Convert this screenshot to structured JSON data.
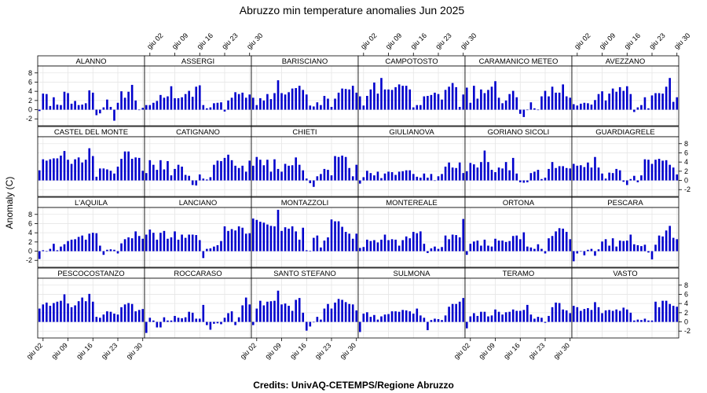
{
  "chart_data": {
    "type": "bar",
    "title": "Abruzzo min temperature anomalies Jun 2025",
    "ylabel": "Anomaly (C)",
    "credits": "Credits: UnivAQ-CETEMPS/Regione Abruzzo",
    "ylim": [
      -3.5,
      9.5
    ],
    "yticks": [
      -2,
      0,
      2,
      4,
      6,
      8
    ],
    "x_range": [
      0.5,
      30.5
    ],
    "xticks": [
      {
        "day": 2,
        "label": "giu 02"
      },
      {
        "day": 9,
        "label": "giu 09"
      },
      {
        "day": 16,
        "label": "giu 16"
      },
      {
        "day": 23,
        "label": "giu 23"
      },
      {
        "day": 30,
        "label": "giu 30"
      }
    ],
    "grid": true,
    "bar_color": "#0000cc",
    "days": [
      1,
      2,
      3,
      4,
      5,
      6,
      7,
      8,
      9,
      10,
      11,
      12,
      13,
      14,
      15,
      16,
      17,
      18,
      19,
      20,
      21,
      22,
      23,
      24,
      25,
      26,
      27,
      28,
      29,
      30
    ],
    "panels": [
      {
        "name": "ALANNO",
        "values": [
          -0.3,
          3.5,
          3.4,
          0.8,
          2.7,
          1.1,
          1.0,
          3.9,
          3.6,
          1.3,
          1.9,
          1.0,
          1.1,
          1.4,
          4.2,
          3.7,
          -1.2,
          -0.8,
          0.5,
          2.2,
          0.6,
          -2.4,
          1.5,
          4.0,
          2.6,
          3.9,
          5.4,
          2.0,
          0.0,
          0.4
        ]
      },
      {
        "name": "ASSERGI",
        "values": [
          1.0,
          1.0,
          1.5,
          1.9,
          3.2,
          2.6,
          2.9,
          5.1,
          2.5,
          2.5,
          2.7,
          3.4,
          4.1,
          2.8,
          5.0,
          5.3,
          1.0,
          0.3,
          0.5,
          1.4,
          1.5,
          1.6,
          -0.4,
          2.0,
          2.6,
          3.8,
          3.4,
          3.7,
          2.6,
          3.3
        ]
      },
      {
        "name": "BARISCIANO",
        "values": [
          2.6,
          1.0,
          2.5,
          2.0,
          3.4,
          2.3,
          3.6,
          6.4,
          3.6,
          3.3,
          3.8,
          4.6,
          4.7,
          5.2,
          4.3,
          3.3,
          0.9,
          0.7,
          1.6,
          1.0,
          3.0,
          2.4,
          0.6,
          2.4,
          3.7,
          4.6,
          4.5,
          4.4,
          5.2,
          3.7
        ]
      },
      {
        "name": "CAMPOTOSTO",
        "values": [
          2.9,
          0.9,
          3.0,
          4.4,
          5.9,
          3.5,
          6.9,
          4.4,
          4.4,
          4.3,
          4.9,
          5.5,
          5.2,
          5.2,
          4.4,
          0.5,
          1.0,
          1.0,
          2.9,
          3.0,
          3.2,
          3.7,
          3.4,
          2.2,
          4.3,
          5.0,
          5.8,
          4.9,
          0.6,
          3.3
        ]
      },
      {
        "name": "CARAMANICO METEO",
        "values": [
          4.8,
          1.5,
          5.2,
          2.4,
          4.4,
          3.6,
          4.3,
          5.0,
          6.2,
          2.6,
          1.4,
          2.0,
          3.4,
          4.1,
          2.7,
          -0.9,
          -1.6,
          0.0,
          1.6,
          0.3,
          -0.1,
          2.9,
          4.1,
          2.9,
          5.0,
          3.7,
          3.7,
          5.5,
          2.9,
          2.6
        ]
      },
      {
        "name": "AVEZZANO",
        "values": [
          1.2,
          0.9,
          1.3,
          1.5,
          1.4,
          1.1,
          2.1,
          3.4,
          4.0,
          2.0,
          3.5,
          4.6,
          3.9,
          4.9,
          4.1,
          5.1,
          3.4,
          -0.5,
          0.5,
          1.0,
          2.7,
          0.3,
          3.1,
          3.6,
          3.6,
          3.5,
          5.0,
          6.9,
          1.7,
          2.7
        ]
      },
      {
        "name": "CASTEL DEL MONTE",
        "values": [
          2.2,
          4.6,
          4.3,
          4.6,
          4.8,
          4.8,
          5.4,
          6.4,
          4.5,
          3.6,
          4.6,
          5.0,
          3.9,
          4.5,
          7.0,
          5.3,
          0.8,
          2.6,
          2.6,
          2.4,
          2.1,
          1.5,
          3.0,
          4.7,
          6.3,
          6.3,
          4.7,
          5.0,
          4.9,
          2.1
        ]
      },
      {
        "name": "CATIGNANO",
        "values": [
          1.6,
          4.4,
          3.4,
          2.3,
          4.4,
          2.4,
          4.2,
          1.1,
          2.5,
          3.4,
          3.0,
          1.2,
          1.0,
          -1.0,
          -1.1,
          1.3,
          0.4,
          0.2,
          0.7,
          3.4,
          4.3,
          4.2,
          4.9,
          5.6,
          4.4,
          3.2,
          2.7,
          3.2,
          1.9,
          4.3
        ]
      },
      {
        "name": "CHIETI",
        "values": [
          3.2,
          5.1,
          4.5,
          3.3,
          4.5,
          1.9,
          4.6,
          2.5,
          1.9,
          3.6,
          3.2,
          3.3,
          5.0,
          3.4,
          2.2,
          0.4,
          -0.6,
          -1.4,
          0.9,
          1.4,
          2.5,
          2.3,
          1.1,
          5.3,
          5.1,
          5.4,
          5.1,
          2.7,
          0.9,
          3.4
        ]
      },
      {
        "name": "GIULIANOVA",
        "values": [
          -0.7,
          0.7,
          2.1,
          1.6,
          1.1,
          1.9,
          0.5,
          1.5,
          1.9,
          1.8,
          1.2,
          1.9,
          2.0,
          2.2,
          2.2,
          1.4,
          0.8,
          0.6,
          1.5,
          0.6,
          1.4,
          -0.1,
          0.9,
          1.4,
          3.0,
          3.9,
          2.8,
          2.7,
          3.9,
          1.6
        ]
      },
      {
        "name": "GORIANO SICOLI",
        "values": [
          2.0,
          3.8,
          3.5,
          2.8,
          4.0,
          6.5,
          4.0,
          2.3,
          1.8,
          2.8,
          2.6,
          4.0,
          2.2,
          4.9,
          1.5,
          -0.4,
          -0.5,
          -0.4,
          1.6,
          1.9,
          2.3,
          0.3,
          0.6,
          2.5,
          4.0,
          2.7,
          3.1,
          3.1,
          2.7,
          2.6
        ]
      },
      {
        "name": "GUARDIAGRELE",
        "values": [
          3.6,
          3.2,
          3.3,
          2.9,
          3.9,
          2.8,
          5.1,
          2.8,
          1.5,
          0.4,
          1.7,
          1.6,
          2.5,
          2.2,
          -0.3,
          -1.0,
          0.3,
          1.0,
          -0.4,
          1.1,
          4.6,
          4.5,
          3.6,
          4.5,
          4.7,
          4.3,
          4.4,
          3.4,
          2.8,
          1.3
        ]
      },
      {
        "name": "L'AQUILA",
        "values": [
          -1.7,
          0.2,
          0.0,
          0.5,
          1.6,
          0.2,
          1.0,
          1.5,
          2.2,
          2.5,
          2.6,
          3.1,
          3.4,
          2.5,
          3.8,
          4.0,
          3.9,
          1.2,
          -0.8,
          0.3,
          0.4,
          0.3,
          -0.5,
          1.7,
          2.6,
          3.0,
          2.8,
          4.3,
          3.3,
          2.7
        ]
      },
      {
        "name": "LANCIANO",
        "values": [
          3.6,
          4.7,
          4.0,
          2.5,
          4.0,
          4.4,
          2.7,
          3.0,
          4.3,
          2.5,
          3.6,
          2.9,
          3.6,
          3.6,
          3.5,
          2.4,
          -1.5,
          0.5,
          0.6,
          1.0,
          1.3,
          2.2,
          5.4,
          4.4,
          4.8,
          4.5,
          5.4,
          5.1,
          3.8,
          3.9
        ]
      },
      {
        "name": "MONTAZZOLI",
        "values": [
          7.1,
          6.8,
          6.4,
          6.2,
          5.8,
          5.5,
          5.4,
          9.0,
          4.4,
          5.2,
          4.9,
          5.4,
          4.3,
          2.5,
          5.1,
          0.2,
          0.1,
          2.9,
          3.4,
          0.8,
          2.3,
          3.0,
          6.9,
          6.5,
          6.5,
          5.3,
          4.2,
          3.8,
          2.7,
          3.8
        ]
      },
      {
        "name": "MONTEREALE",
        "values": [
          0.7,
          0.9,
          2.5,
          2.2,
          2.4,
          1.9,
          2.5,
          3.6,
          2.4,
          2.6,
          2.5,
          1.2,
          2.4,
          3.2,
          2.8,
          4.2,
          3.9,
          4.3,
          1.6,
          -0.4,
          0.6,
          1.0,
          0.5,
          0.9,
          3.4,
          2.6,
          3.6,
          3.5,
          3.0,
          7.0
        ]
      },
      {
        "name": "ORTONA",
        "values": [
          -0.8,
          1.6,
          2.1,
          2.3,
          1.2,
          2.5,
          1.2,
          1.0,
          2.7,
          2.3,
          2.3,
          2.0,
          2.2,
          3.3,
          3.4,
          2.6,
          4.1,
          1.0,
          0.8,
          0.5,
          1.5,
          0.5,
          -0.5,
          2.8,
          3.3,
          4.3,
          5.0,
          4.9,
          4.2,
          2.6
        ]
      },
      {
        "name": "PESCARA",
        "values": [
          -2.2,
          -0.5,
          -0.1,
          -0.9,
          0.3,
          0.5,
          -1.0,
          0.4,
          2.1,
          2.6,
          1.2,
          2.8,
          1.0,
          2.3,
          2.2,
          2.3,
          3.6,
          1.5,
          1.3,
          1.1,
          1.4,
          -0.3,
          -1.8,
          1.4,
          3.4,
          3.2,
          4.5,
          5.5,
          2.9,
          2.6
        ]
      },
      {
        "name": "PESCOCOSTANZO",
        "values": [
          2.9,
          3.8,
          4.2,
          3.5,
          4.1,
          4.4,
          4.6,
          6.0,
          4.0,
          3.2,
          3.6,
          4.5,
          5.3,
          4.5,
          6.1,
          4.4,
          1.1,
          0.9,
          1.6,
          2.3,
          2.2,
          1.8,
          1.6,
          3.2,
          3.8,
          4.1,
          3.9,
          2.3,
          2.6,
          2.8
        ]
      },
      {
        "name": "ROCCARASO",
        "values": [
          -2.4,
          0.9,
          0.3,
          -1.2,
          -1.2,
          1.0,
          0.3,
          0.3,
          1.3,
          0.9,
          0.8,
          1.0,
          2.2,
          2.0,
          0.7,
          0.7,
          3.7,
          -0.7,
          -1.7,
          -0.4,
          -0.3,
          -0.5,
          0.9,
          1.9,
          2.3,
          -0.7,
          1.0,
          3.6,
          5.3,
          3.8
        ]
      },
      {
        "name": "SANTO STEFANO",
        "values": [
          -0.7,
          2.9,
          4.6,
          3.6,
          4.4,
          4.5,
          4.6,
          6.8,
          3.8,
          4.0,
          3.5,
          2.4,
          4.8,
          5.2,
          2.0,
          -1.9,
          -1.0,
          0.0,
          1.1,
          0.5,
          2.9,
          3.9,
          2.9,
          4.2,
          5.0,
          4.8,
          4.3,
          3.9,
          3.8,
          2.5
        ]
      },
      {
        "name": "SULMONA",
        "values": [
          -2.2,
          1.8,
          2.1,
          1.1,
          1.5,
          0.5,
          1.2,
          1.6,
          1.7,
          2.3,
          2.3,
          2.2,
          2.6,
          2.5,
          2.3,
          1.8,
          2.9,
          1.4,
          0.9,
          -1.8,
          0.4,
          0.7,
          0.6,
          0.4,
          1.4,
          3.3,
          3.9,
          3.9,
          4.4,
          5.2
        ]
      },
      {
        "name": "TERAMO",
        "values": [
          -1.4,
          1.2,
          1.9,
          1.3,
          2.2,
          2.2,
          1.2,
          1.4,
          2.7,
          2.2,
          1.6,
          2.1,
          2.2,
          2.7,
          2.4,
          2.4,
          2.6,
          3.7,
          1.6,
          0.7,
          1.1,
          0.9,
          -0.2,
          1.3,
          3.2,
          4.2,
          4.1,
          2.7,
          2.5,
          1.9
        ]
      },
      {
        "name": "VASTO",
        "values": [
          3.5,
          3.2,
          2.4,
          2.8,
          3.0,
          2.6,
          4.3,
          3.2,
          1.9,
          2.5,
          2.6,
          2.4,
          2.7,
          2.4,
          3.1,
          2.7,
          2.0,
          0.3,
          0.5,
          0.4,
          0.7,
          0.3,
          0.3,
          4.4,
          3.2,
          4.6,
          4.6,
          3.9,
          3.5,
          3.3
        ]
      }
    ]
  }
}
